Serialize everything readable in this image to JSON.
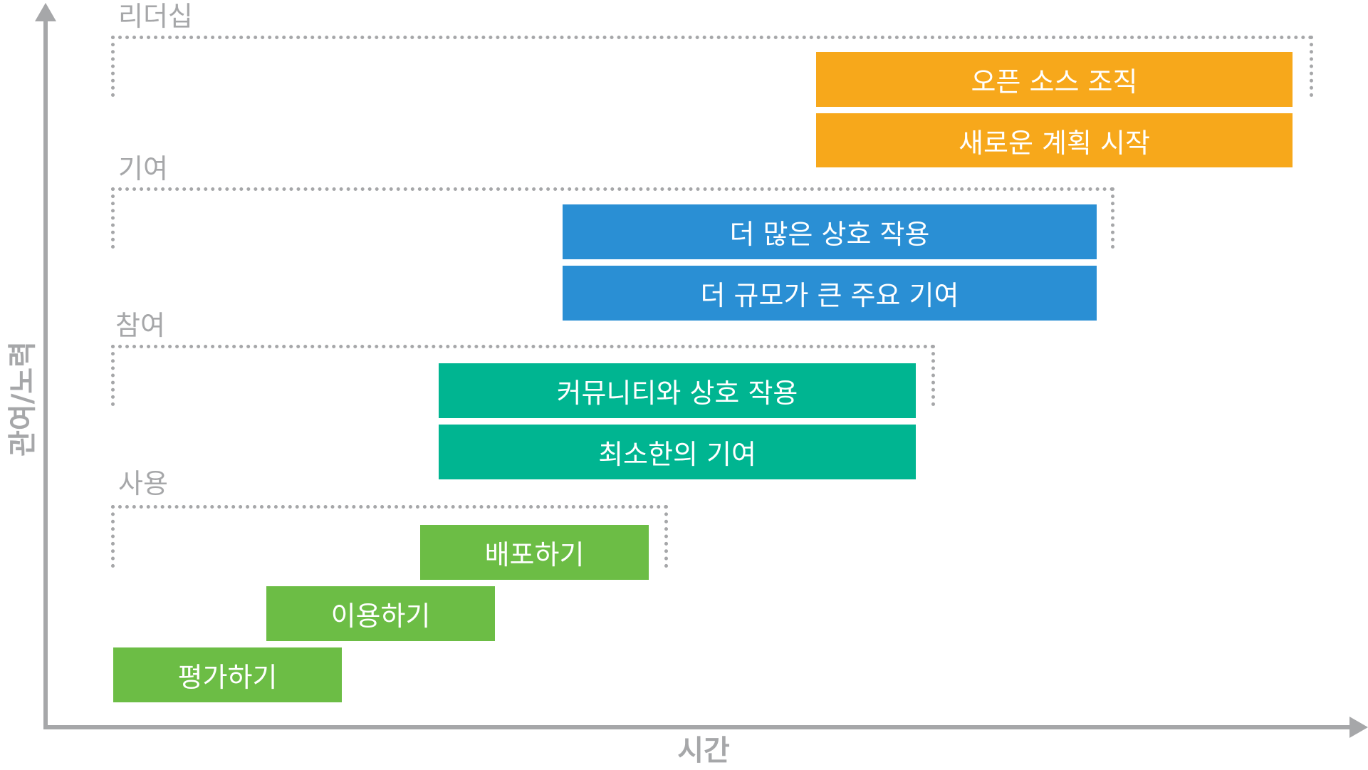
{
  "colors": {
    "axis": "#a6a7a9",
    "leadership": "#f7a81b",
    "contribution": "#2a8fd4",
    "participation": "#00b591",
    "usage": "#6cbd45"
  },
  "axes": {
    "y_label": "관여/노력",
    "x_label": "시간"
  },
  "zones": {
    "leadership": {
      "label": "리더십",
      "bars": [
        "오픈 소스 조직",
        "새로운 계획 시작"
      ]
    },
    "contribution": {
      "label": "기여",
      "bars": [
        "더 많은 상호 작용",
        "더 규모가 큰 주요 기여"
      ]
    },
    "participation": {
      "label": "참여",
      "bars": [
        "커뮤니티와 상호 작용",
        "최소한의 기여"
      ]
    },
    "usage": {
      "label": "사용",
      "bars": [
        "배포하기",
        "이용하기",
        "평가하기"
      ]
    }
  }
}
